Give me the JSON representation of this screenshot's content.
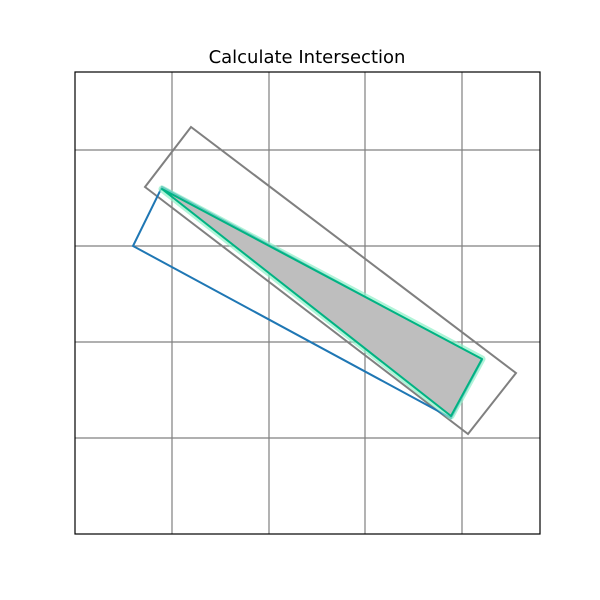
{
  "title": "Calculate Intersection",
  "colors": {
    "grid": "#808080",
    "frame": "#000000",
    "rect_a": "#808080",
    "rect_b": "#1f77b4",
    "intersection_fill": "#bebebe",
    "intersection_edge": "#00b383",
    "intersection_glow": "#8ef0c8"
  }
}
